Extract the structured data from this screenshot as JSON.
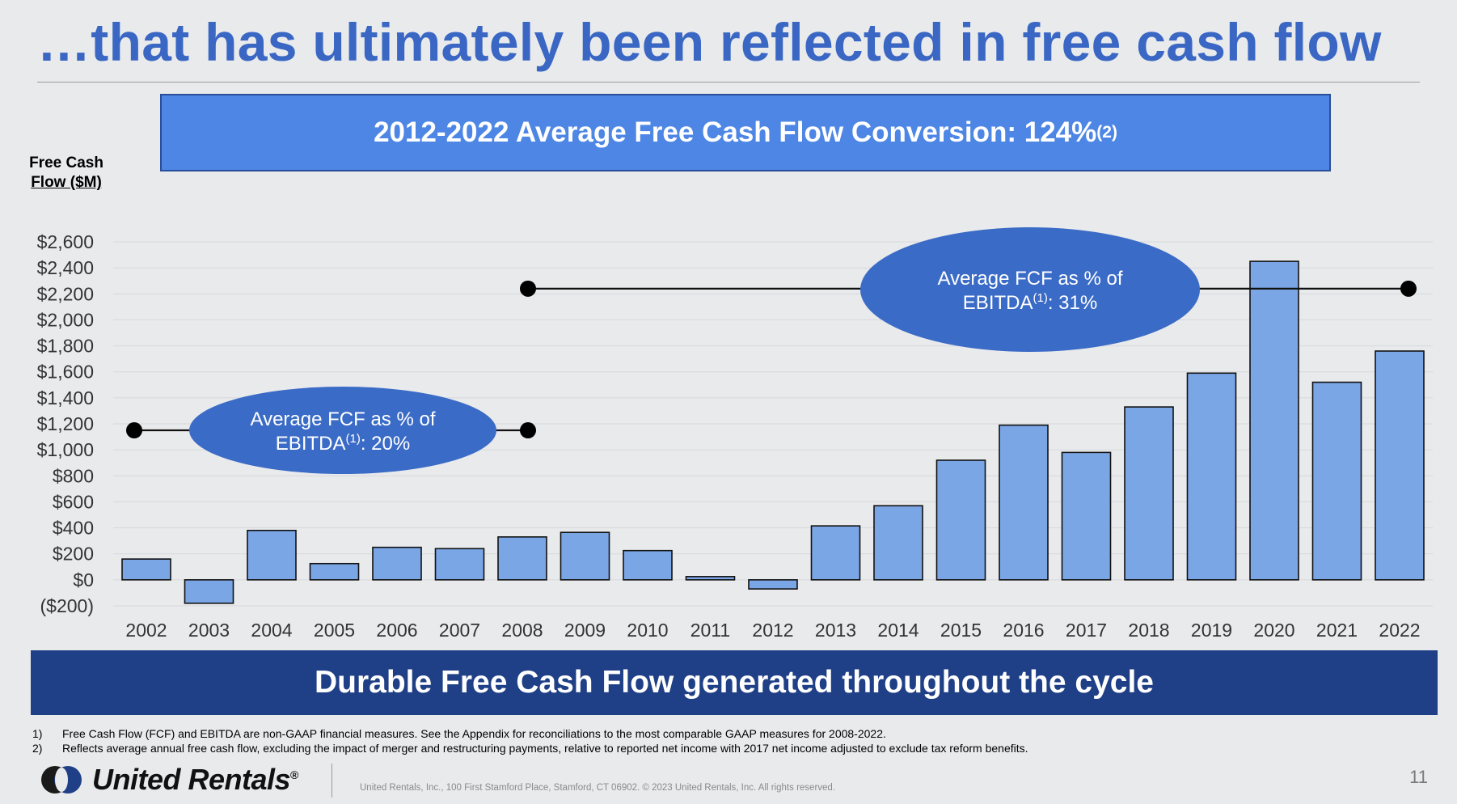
{
  "slide": {
    "title": "…that has ultimately been reflected in free cash flow",
    "banner_top": {
      "text": "2012-2022 Average Free Cash Flow Conversion: 124%",
      "sup": "(2)"
    },
    "y_axis_title_line1": "Free Cash",
    "y_axis_title_line2": "Flow ($M)",
    "banner_bottom": "Durable Free Cash Flow generated throughout the cycle",
    "footnotes": [
      {
        "num": "1)",
        "text": "Free Cash Flow (FCF) and EBITDA are non-GAAP financial measures. See the Appendix for reconciliations to the most comparable GAAP measures for 2008-2022."
      },
      {
        "num": "2)",
        "text": "Reflects average annual free cash flow, excluding the impact of merger and restructuring payments, relative to reported net income with 2017 net income adjusted to exclude tax reform benefits."
      }
    ],
    "brand": "United Rentals",
    "brand_mark": "®",
    "copyright": "United Rentals, Inc., 100 First Stamford Place, Stamford, CT 06902. © 2023 United Rentals, Inc. All rights reserved.",
    "page_number": "11"
  },
  "colors": {
    "bar_fill": "#7ba6e6",
    "bar_stroke": "#111111",
    "title_blue": "#3a67c4",
    "ellipse_fill": "#3a6bc6",
    "banner_top_fill": "#4d86e4",
    "banner_bottom_fill": "#1f3f86"
  },
  "chart_data": {
    "type": "bar",
    "categories": [
      "2002",
      "2003",
      "2004",
      "2005",
      "2006",
      "2007",
      "2008",
      "2009",
      "2010",
      "2011",
      "2012",
      "2013",
      "2014",
      "2015",
      "2016",
      "2017",
      "2018",
      "2019",
      "2020",
      "2021",
      "2022"
    ],
    "values": [
      160,
      -180,
      380,
      125,
      250,
      240,
      330,
      365,
      225,
      25,
      -70,
      415,
      570,
      920,
      1190,
      980,
      1330,
      1590,
      2450,
      1520,
      1760
    ],
    "ylabel": "Free Cash Flow ($M)",
    "ylim": [
      -200,
      2600
    ],
    "y_ticks": [
      {
        "value": 2600,
        "label": "$2,600"
      },
      {
        "value": 2400,
        "label": "$2,400"
      },
      {
        "value": 2200,
        "label": "$2,200"
      },
      {
        "value": 2000,
        "label": "$2,000"
      },
      {
        "value": 1800,
        "label": "$1,800"
      },
      {
        "value": 1600,
        "label": "$1,600"
      },
      {
        "value": 1400,
        "label": "$1,400"
      },
      {
        "value": 1200,
        "label": "$1,200"
      },
      {
        "value": 1000,
        "label": "$1,000"
      },
      {
        "value": 800,
        "label": "$800"
      },
      {
        "value": 600,
        "label": "$600"
      },
      {
        "value": 400,
        "label": "$400"
      },
      {
        "value": 200,
        "label": "$200"
      },
      {
        "value": 0,
        "label": "$0"
      },
      {
        "value": -200,
        "label": "($200)"
      }
    ],
    "grid": true,
    "annotations": [
      {
        "start": "2002",
        "end": "2008",
        "y": 1150,
        "line1": "Average FCF as % of",
        "line2_pre": "EBITDA",
        "line2_sup": "(1)",
        "line2_post": ": 20%"
      },
      {
        "start": "2008",
        "end": "2022",
        "y": 2240,
        "line1": "Average FCF as % of",
        "line2_pre": "EBITDA",
        "line2_sup": "(1)",
        "line2_post": ": 31%"
      }
    ]
  }
}
